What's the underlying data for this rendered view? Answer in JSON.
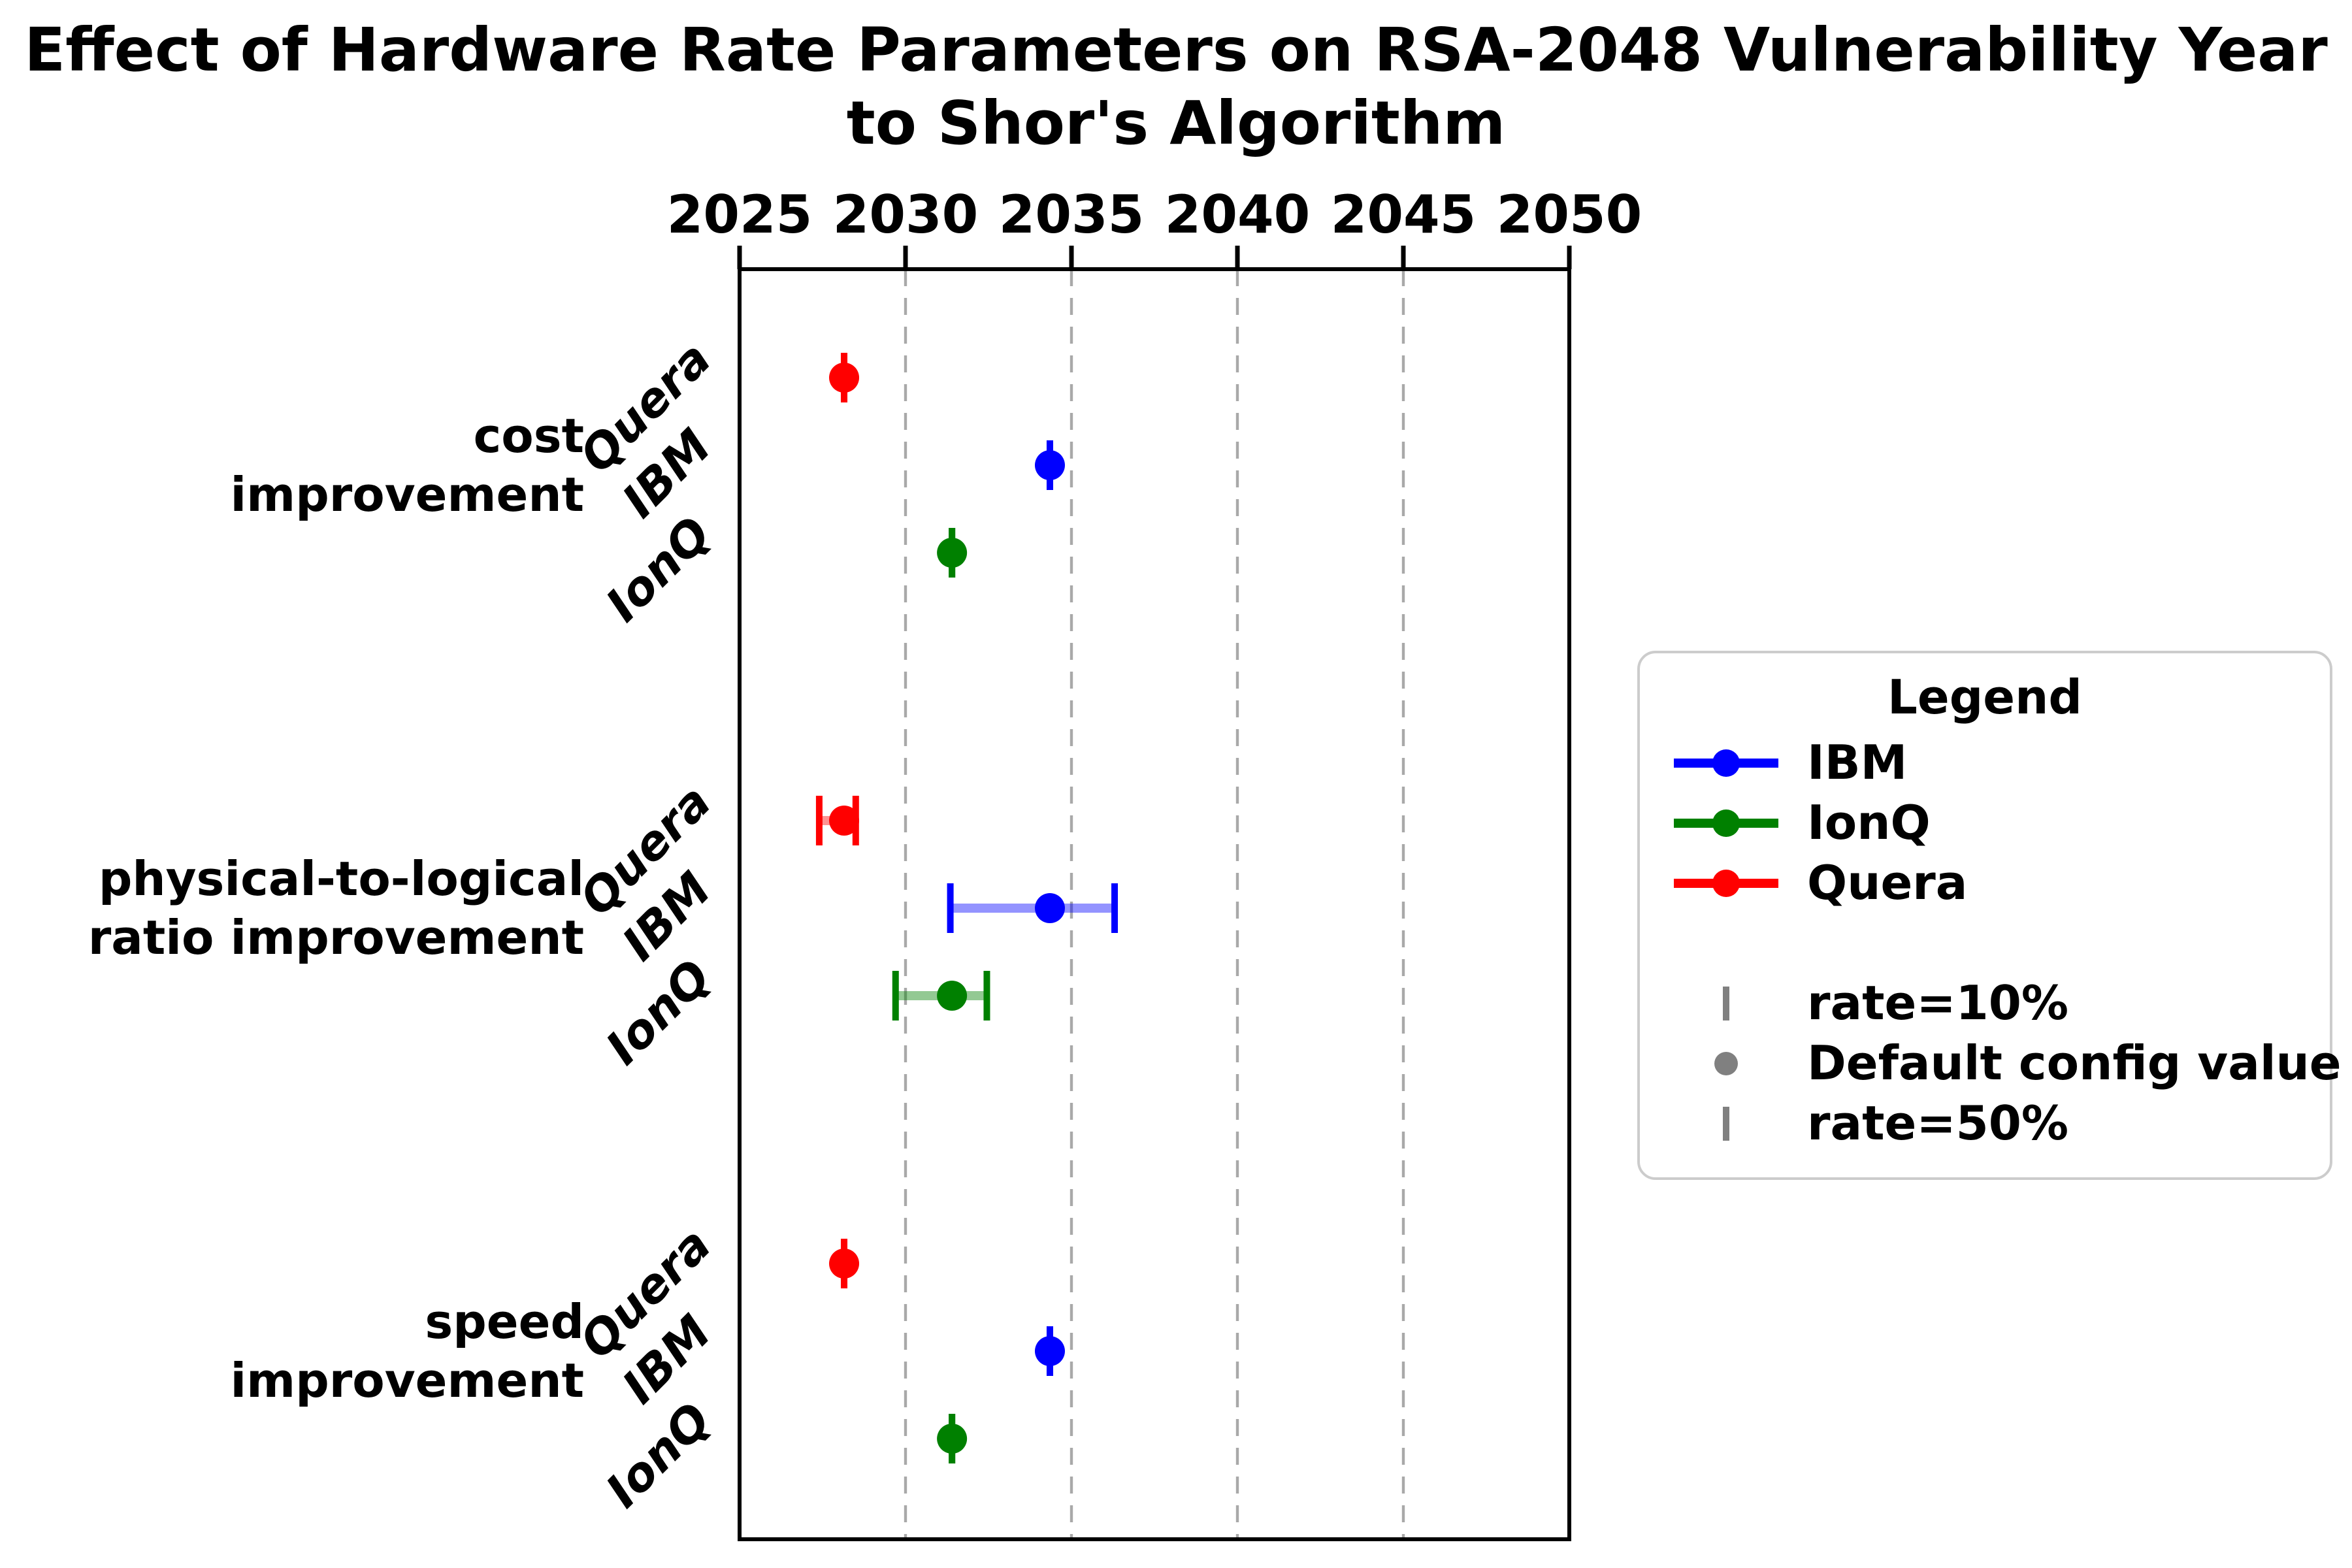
{
  "title": {
    "line1": "Effect of Hardware Rate Parameters on RSA-2048 Vulnerability Year",
    "line2": "to Shor's Algorithm"
  },
  "x_axis": {
    "min": 2025,
    "max": 2050,
    "ticks": [
      2025,
      2030,
      2035,
      2040,
      2045,
      2050
    ],
    "gridlines": [
      2030,
      2035,
      2040,
      2045
    ]
  },
  "colors": {
    "IBM": "#0000ff",
    "IonQ": "#008000",
    "Quera": "#ff0000",
    "rate_marker": "#808080",
    "grid": "#a9a9a9",
    "spine": "#000000"
  },
  "legend": {
    "title": "Legend",
    "series": [
      {
        "label": "IBM",
        "color": "#0000ff"
      },
      {
        "label": "IonQ",
        "color": "#008000"
      },
      {
        "label": "Quera",
        "color": "#ff0000"
      }
    ],
    "extras": [
      {
        "marker": "tick",
        "label": "rate=10%"
      },
      {
        "marker": "dot",
        "label": "Default config value"
      },
      {
        "marker": "tick",
        "label": "rate=50%"
      }
    ]
  },
  "chart_data": {
    "type": "scatter",
    "subtype": "horizontal-errorbar-dotplot",
    "xlabel": "year",
    "x_range": [
      2025,
      2050
    ],
    "grid": "vertical-dashed",
    "legend_position": "right",
    "groups": [
      {
        "name": "cost improvement",
        "label_lines": [
          "cost",
          "improvement"
        ],
        "rows": [
          {
            "vendor": "Quera",
            "color": "#ff0000",
            "low": 2028.15,
            "value": 2028.15,
            "high": 2028.15
          },
          {
            "vendor": "IBM",
            "color": "#0000ff",
            "low": 2034.35,
            "value": 2034.35,
            "high": 2034.35
          },
          {
            "vendor": "IonQ",
            "color": "#008000",
            "low": 2031.4,
            "value": 2031.4,
            "high": 2031.4
          }
        ]
      },
      {
        "name": "physical-to-logical ratio improvement",
        "label_lines": [
          "physical-to-logical",
          "ratio improvement"
        ],
        "rows": [
          {
            "vendor": "Quera",
            "color": "#ff0000",
            "low": 2027.4,
            "value": 2028.15,
            "high": 2028.5
          },
          {
            "vendor": "IBM",
            "color": "#0000ff",
            "low": 2031.35,
            "value": 2034.35,
            "high": 2036.3
          },
          {
            "vendor": "IonQ",
            "color": "#008000",
            "low": 2029.7,
            "value": 2031.4,
            "high": 2032.45
          }
        ]
      },
      {
        "name": "speed improvement",
        "label_lines": [
          "speed",
          "improvement"
        ],
        "rows": [
          {
            "vendor": "Quera",
            "color": "#ff0000",
            "low": 2028.15,
            "value": 2028.15,
            "high": 2028.15
          },
          {
            "vendor": "IBM",
            "color": "#0000ff",
            "low": 2034.35,
            "value": 2034.35,
            "high": 2034.35
          },
          {
            "vendor": "IonQ",
            "color": "#008000",
            "low": 2031.4,
            "value": 2031.4,
            "high": 2031.4
          }
        ]
      }
    ]
  }
}
